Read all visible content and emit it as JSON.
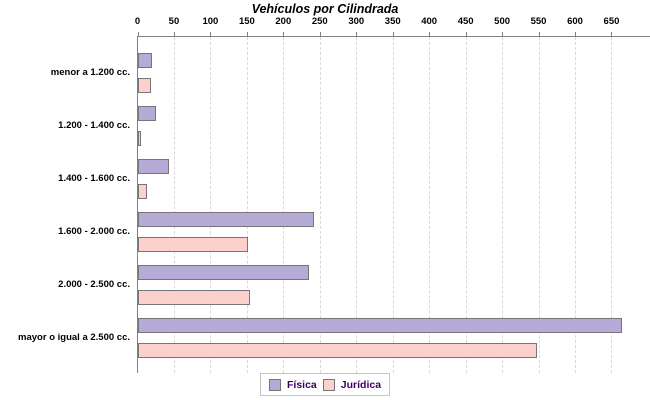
{
  "title": "Vehículos por Cilindrada",
  "chart_data": {
    "type": "bar",
    "orientation": "horizontal",
    "title": "Vehículos por Cilindrada",
    "xlabel": "",
    "ylabel": "",
    "categories": [
      "menor a 1.200 cc.",
      "1.200 - 1.400 cc.",
      "1.400 - 1.600 cc.",
      "1.600 - 2.000 cc.",
      "2.000 - 2.500 cc.",
      "mayor o igual a 2.500 cc."
    ],
    "series": [
      {
        "name": "Física",
        "color": "#b5abd6",
        "values": [
          17,
          22,
          40,
          239,
          232,
          661
        ]
      },
      {
        "name": "Jurídica",
        "color": "#fcd0cd",
        "values": [
          15,
          1,
          9,
          148,
          151,
          544
        ]
      }
    ],
    "xticks": [
      0,
      50,
      100,
      150,
      200,
      250,
      300,
      350,
      400,
      450,
      500,
      550,
      600,
      650
    ],
    "xlim": [
      0,
      700
    ],
    "grid": "vertical-dashed",
    "legend_position": "bottom"
  },
  "colors": {
    "fisica": "#b5abd6",
    "juridica": "#fcd0cd",
    "bar_border": "#757575",
    "axis": "#808080",
    "gridline": "#d8d8d8",
    "legend_text": "#3d0066",
    "legend_border": "#c4c4c4",
    "title_text": "#000000"
  }
}
